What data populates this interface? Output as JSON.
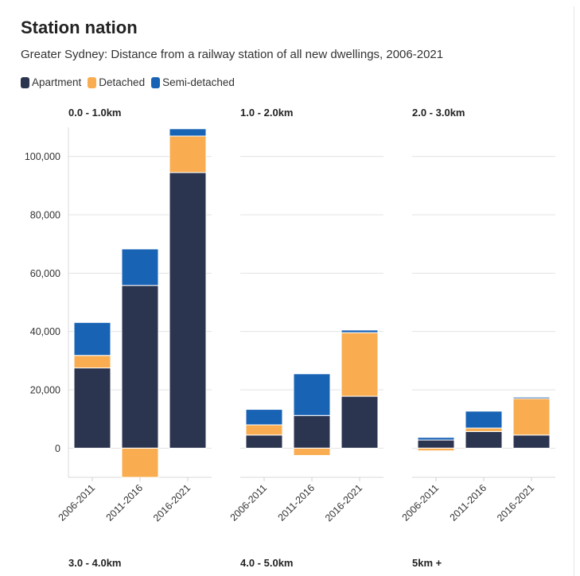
{
  "chart_data": {
    "type": "bar",
    "stacked": true,
    "title": "Station nation",
    "subtitle": "Greater Sydney: Distance from a railway station of all new dwellings, 2006-2021",
    "legend_position": "top-left",
    "categories": [
      "2006-2011",
      "2011-2016",
      "2016-2021"
    ],
    "ylim": [
      -10000,
      110000
    ],
    "yticks": [
      0,
      20000,
      40000,
      60000,
      80000,
      100000
    ],
    "ytick_labels": [
      "0",
      "20,000",
      "40,000",
      "60,000",
      "80,000",
      "100,000"
    ],
    "grid": true,
    "series_styles": [
      {
        "name": "Apartment",
        "color": "#2c3550"
      },
      {
        "name": "Detached",
        "color": "#f9ad50"
      },
      {
        "name": "Semi-detached",
        "color": "#1963b5"
      }
    ],
    "panels": [
      {
        "label": "0.0 - 1.0km",
        "series": [
          {
            "name": "Apartment",
            "values": [
              27500,
              55800,
              94500
            ]
          },
          {
            "name": "Detached",
            "values": [
              4300,
              -10000,
              12500
            ]
          },
          {
            "name": "Semi-detached",
            "values": [
              11300,
              12500,
              2500
            ]
          }
        ]
      },
      {
        "label": "1.0 - 2.0km",
        "series": [
          {
            "name": "Apartment",
            "values": [
              4500,
              11200,
              17800
            ]
          },
          {
            "name": "Detached",
            "values": [
              3500,
              -2500,
              21800
            ]
          },
          {
            "name": "Semi-detached",
            "values": [
              5300,
              14300,
              900
            ]
          }
        ]
      },
      {
        "label": "2.0 - 3.0km",
        "series": [
          {
            "name": "Apartment",
            "values": [
              2800,
              5700,
              4500
            ]
          },
          {
            "name": "Detached",
            "values": [
              -900,
              1200,
              12500
            ]
          },
          {
            "name": "Semi-detached",
            "values": [
              900,
              5800,
              500
            ]
          }
        ]
      }
    ],
    "partial_panel_labels": [
      "3.0 - 4.0km",
      "4.0 - 5.0km",
      "5km +"
    ]
  }
}
